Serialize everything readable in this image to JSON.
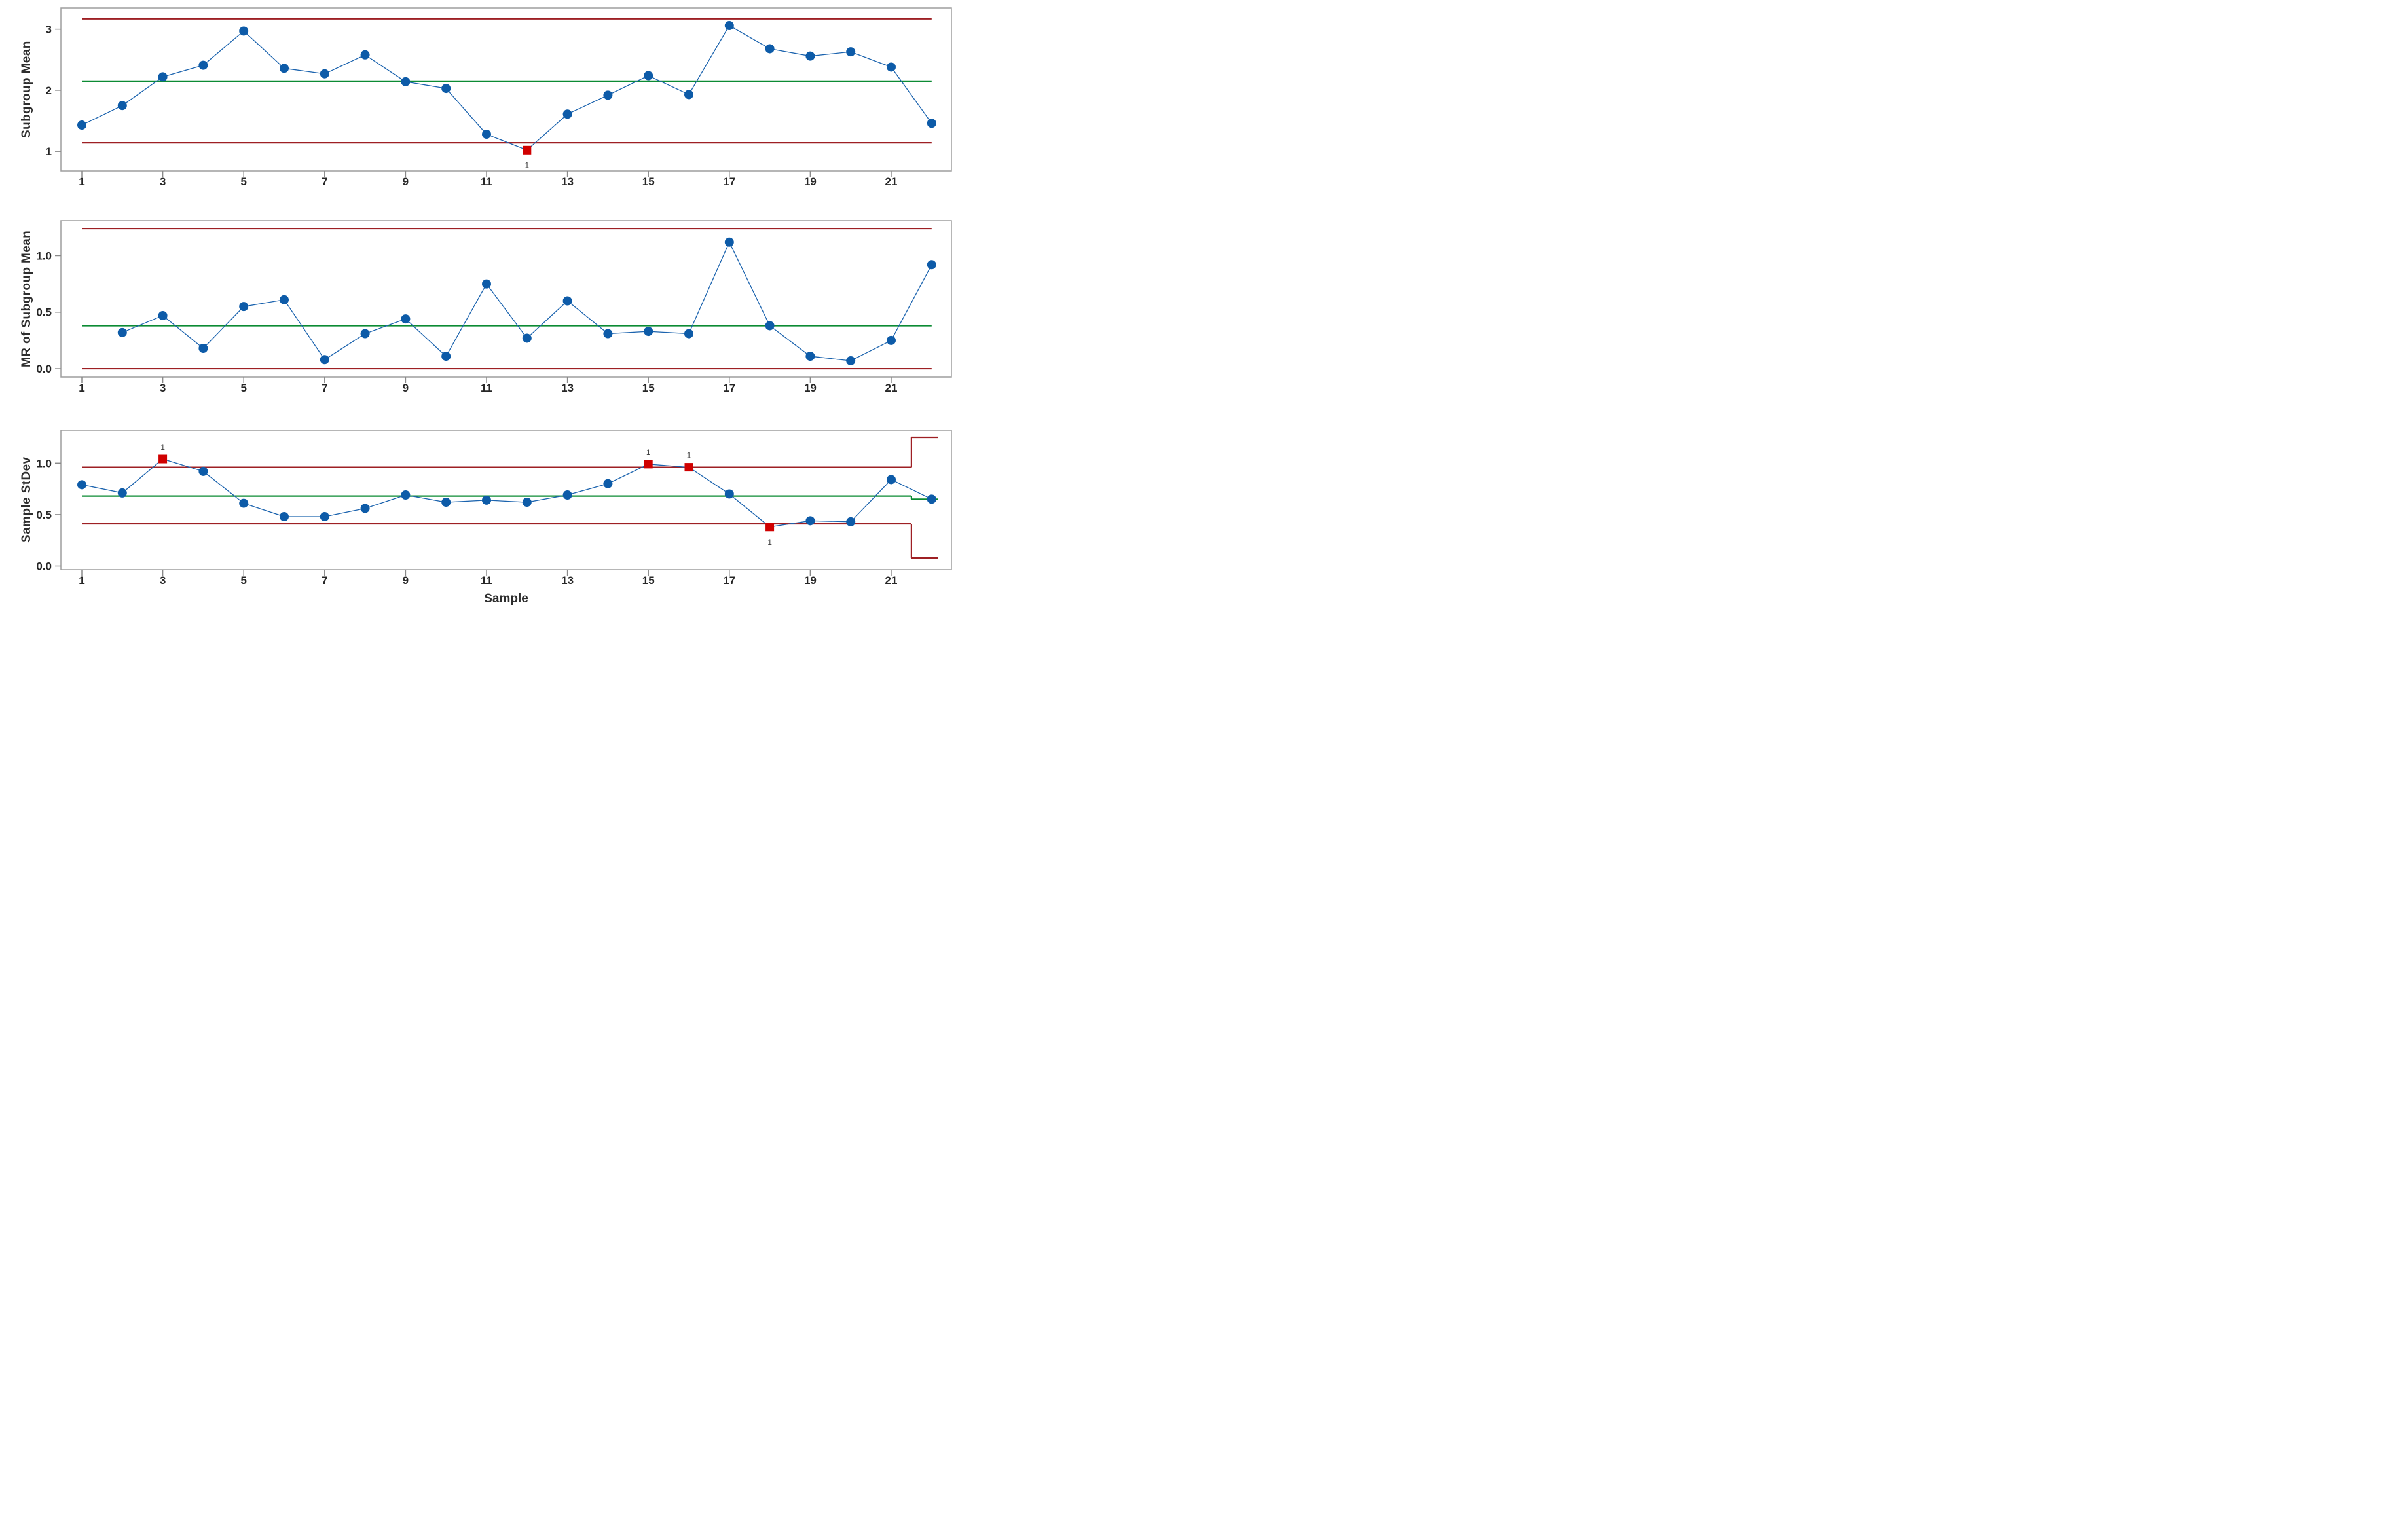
{
  "figure": {
    "kind": "variables control chart with three stacked panels",
    "xlabel": "Sample"
  },
  "colors": {
    "point_blue": "#0d5ba8",
    "connect_blue": "#1b63ae",
    "limit_red": "#9e2024",
    "center_green": "#0c8b34",
    "out_of_control_red": "#d00000",
    "frame_gray": "#9e9e9e",
    "tick_gray": "#8a8a8a",
    "text_dark": "#262626"
  },
  "chart_data": [
    {
      "type": "line",
      "panel": "subgroup-mean",
      "ylabel": "Subgroup Mean",
      "samples": [
        1,
        2,
        3,
        4,
        5,
        6,
        7,
        8,
        9,
        10,
        11,
        12,
        13,
        14,
        15,
        16,
        17,
        18,
        19,
        20,
        21,
        22
      ],
      "values": [
        1.43,
        1.75,
        2.22,
        2.41,
        2.97,
        2.36,
        2.27,
        2.58,
        2.14,
        2.03,
        1.28,
        1.02,
        1.61,
        1.92,
        2.24,
        1.93,
        3.06,
        2.68,
        2.56,
        2.63,
        2.38,
        1.46
      ],
      "ucl": 3.17,
      "center_line": 2.15,
      "lcl": 1.14,
      "ylim": [
        0.68,
        3.35
      ],
      "yticks": [
        1,
        2,
        3
      ],
      "ytick_labels": [
        "1",
        "2",
        "3"
      ],
      "xticks": [
        1,
        3,
        5,
        7,
        9,
        11,
        13,
        15,
        17,
        19,
        21
      ],
      "xtick_labels": [
        "1",
        "3",
        "5",
        "7",
        "9",
        "11",
        "13",
        "15",
        "17",
        "19",
        "21"
      ],
      "out_of_control": [
        {
          "sample": 12,
          "label": "1",
          "label_position": "below"
        }
      ],
      "grid": false,
      "legend": false
    },
    {
      "type": "line",
      "panel": "moving-range",
      "ylabel": "MR of Subgroup Mean",
      "samples": [
        2,
        3,
        4,
        5,
        6,
        7,
        8,
        9,
        10,
        11,
        12,
        13,
        14,
        15,
        16,
        17,
        18,
        19,
        20,
        21,
        22
      ],
      "values": [
        0.32,
        0.47,
        0.18,
        0.55,
        0.61,
        0.08,
        0.31,
        0.44,
        0.11,
        0.75,
        0.27,
        0.6,
        0.31,
        0.33,
        0.31,
        1.12,
        0.38,
        0.11,
        0.07,
        0.25,
        0.92
      ],
      "ucl": 1.24,
      "center_line": 0.38,
      "lcl": 0.0,
      "ylim": [
        -0.075,
        1.31
      ],
      "yticks": [
        0,
        0.5,
        1
      ],
      "ytick_labels": [
        "0.0",
        "0.5",
        "1.0"
      ],
      "xticks": [
        1,
        3,
        5,
        7,
        9,
        11,
        13,
        15,
        17,
        19,
        21
      ],
      "xtick_labels": [
        "1",
        "3",
        "5",
        "7",
        "9",
        "11",
        "13",
        "15",
        "17",
        "19",
        "21"
      ],
      "out_of_control": [],
      "grid": false,
      "legend": false
    },
    {
      "type": "line",
      "panel": "sample-stdev",
      "ylabel": "Sample StDev",
      "xlabel": "Sample",
      "samples": [
        1,
        2,
        3,
        4,
        5,
        6,
        7,
        8,
        9,
        10,
        11,
        12,
        13,
        14,
        15,
        16,
        17,
        18,
        19,
        20,
        21,
        22
      ],
      "values": [
        0.79,
        0.71,
        1.04,
        0.92,
        0.61,
        0.48,
        0.48,
        0.56,
        0.69,
        0.62,
        0.64,
        0.62,
        0.69,
        0.8,
        0.99,
        0.96,
        0.7,
        0.38,
        0.44,
        0.43,
        0.84,
        0.65
      ],
      "limit_segments": [
        {
          "x_from": 1,
          "x_to": 21.5,
          "ucl": 0.96,
          "center_line": 0.68,
          "lcl": 0.41
        },
        {
          "x_from": 21.5,
          "x_to": 22.15,
          "ucl": 1.25,
          "center_line": 0.65,
          "lcl": 0.08
        }
      ],
      "ylim": [
        -0.035,
        1.32
      ],
      "yticks": [
        0,
        0.5,
        1
      ],
      "ytick_labels": [
        "0.0",
        "0.5",
        "1.0"
      ],
      "xticks": [
        1,
        3,
        5,
        7,
        9,
        11,
        13,
        15,
        17,
        19,
        21
      ],
      "xtick_labels": [
        "1",
        "3",
        "5",
        "7",
        "9",
        "11",
        "13",
        "15",
        "17",
        "19",
        "21"
      ],
      "out_of_control": [
        {
          "sample": 3,
          "label": "1",
          "label_position": "above"
        },
        {
          "sample": 15,
          "label": "1",
          "label_position": "above"
        },
        {
          "sample": 16,
          "label": "1",
          "label_position": "above"
        },
        {
          "sample": 18,
          "label": "1",
          "label_position": "below"
        }
      ],
      "grid": false,
      "legend": false
    }
  ]
}
